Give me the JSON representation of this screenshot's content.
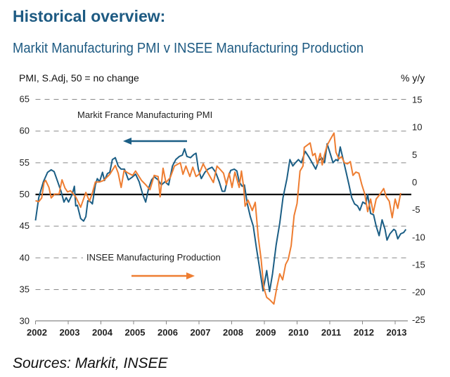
{
  "title": "Historical overview:",
  "subtitle": "Markit Manufacturing PMI v INSEE Manufacturing Production",
  "sources": "Sources: Markit, INSEE",
  "colors": {
    "pmi": "#1b5e85",
    "production": "#ee7d31",
    "title": "#1d5a82"
  },
  "chart_data": {
    "type": "line",
    "title": "Markit Manufacturing PMI v INSEE Manufacturing Production",
    "ylabel_left": "PMI, S.Adj, 50 = no change",
    "ylabel_right": "% y/y",
    "xlim": [
      2002,
      2013.33
    ],
    "ylim_left": [
      30,
      65
    ],
    "ylim_right": [
      -25,
      15
    ],
    "x_ticks": [
      "2002",
      "2003",
      "2004",
      "2005",
      "2006",
      "2007",
      "2008",
      "2009",
      "2010",
      "2011",
      "2012",
      "2013"
    ],
    "y_ticks_left": [
      65,
      60,
      55,
      50,
      45,
      40,
      35,
      30
    ],
    "y_ticks_right": [
      15,
      10,
      5,
      0,
      -5,
      -10,
      -15,
      -20,
      -25
    ],
    "grid": "dashed horizontal",
    "reference_line": 50,
    "annotations": {
      "pmi_label": "Markit France Manufacturing PMI",
      "pmi_arrow": "left axis",
      "production_label": "INSEE Manufacturing Production",
      "production_arrow": "right axis"
    },
    "series": [
      {
        "name": "Markit France Manufacturing PMI",
        "axis": "left",
        "points": [
          [
            2002.0,
            45.9
          ],
          [
            2002.1,
            49.5
          ],
          [
            2002.24,
            52
          ],
          [
            2002.37,
            53.5
          ],
          [
            2002.48,
            53.9
          ],
          [
            2002.57,
            53.6
          ],
          [
            2002.68,
            52
          ],
          [
            2002.78,
            50.5
          ],
          [
            2002.87,
            48.8
          ],
          [
            2002.94,
            49.5
          ],
          [
            2003.01,
            48.8
          ],
          [
            2003.12,
            50
          ],
          [
            2003.19,
            51.3
          ],
          [
            2003.23,
            48.2
          ],
          [
            2003.28,
            48.3
          ],
          [
            2003.38,
            46.2
          ],
          [
            2003.47,
            45.8
          ],
          [
            2003.54,
            46.5
          ],
          [
            2003.6,
            49
          ],
          [
            2003.69,
            48.8
          ],
          [
            2003.74,
            48.5
          ],
          [
            2003.83,
            51.5
          ],
          [
            2003.89,
            52.5
          ],
          [
            2003.96,
            52
          ],
          [
            2004.05,
            53.5
          ],
          [
            2004.11,
            52.2
          ],
          [
            2004.2,
            53.3
          ],
          [
            2004.27,
            53.5
          ],
          [
            2004.35,
            55.5
          ],
          [
            2004.44,
            55.8
          ],
          [
            2004.53,
            54.5
          ],
          [
            2004.62,
            54
          ],
          [
            2004.72,
            54
          ],
          [
            2004.84,
            52.3
          ],
          [
            2004.95,
            52.7
          ],
          [
            2005.06,
            53.2
          ],
          [
            2005.17,
            52
          ],
          [
            2005.28,
            50
          ],
          [
            2005.37,
            48.8
          ],
          [
            2005.46,
            51
          ],
          [
            2005.55,
            52.3
          ],
          [
            2005.63,
            52.8
          ],
          [
            2005.75,
            52.3
          ],
          [
            2005.85,
            51.5
          ],
          [
            2005.96,
            52
          ],
          [
            2006.07,
            51.5
          ],
          [
            2006.19,
            54.5
          ],
          [
            2006.29,
            55.5
          ],
          [
            2006.4,
            56
          ],
          [
            2006.49,
            56.2
          ],
          [
            2006.56,
            57.2
          ],
          [
            2006.63,
            56
          ],
          [
            2006.74,
            55.8
          ],
          [
            2006.84,
            56.3
          ],
          [
            2006.91,
            56.5
          ],
          [
            2006.98,
            54
          ],
          [
            2007.07,
            52.5
          ],
          [
            2007.18,
            53.5
          ],
          [
            2007.28,
            54
          ],
          [
            2007.4,
            54.3
          ],
          [
            2007.51,
            53.5
          ],
          [
            2007.62,
            52
          ],
          [
            2007.71,
            50.5
          ],
          [
            2007.79,
            50.5
          ],
          [
            2007.88,
            52.5
          ],
          [
            2007.97,
            53.8
          ],
          [
            2008.08,
            54
          ],
          [
            2008.16,
            53.7
          ],
          [
            2008.23,
            52
          ],
          [
            2008.32,
            51.3
          ],
          [
            2008.39,
            51.5
          ],
          [
            2008.48,
            48.5
          ],
          [
            2008.57,
            46.5
          ],
          [
            2008.66,
            45
          ],
          [
            2008.76,
            41.5
          ],
          [
            2008.85,
            38.5
          ],
          [
            2008.96,
            34.8
          ],
          [
            2009.07,
            38
          ],
          [
            2009.16,
            34.7
          ],
          [
            2009.25,
            37.5
          ],
          [
            2009.36,
            42
          ],
          [
            2009.47,
            45.5
          ],
          [
            2009.57,
            49.5
          ],
          [
            2009.69,
            52.5
          ],
          [
            2009.78,
            55.5
          ],
          [
            2009.87,
            54.5
          ],
          [
            2009.95,
            55
          ],
          [
            2010.04,
            55.5
          ],
          [
            2010.13,
            55
          ],
          [
            2010.25,
            56.8
          ],
          [
            2010.35,
            56
          ],
          [
            2010.46,
            55
          ],
          [
            2010.57,
            54
          ],
          [
            2010.66,
            55.3
          ],
          [
            2010.75,
            55.8
          ],
          [
            2010.84,
            55
          ],
          [
            2010.92,
            58
          ],
          [
            2011.01,
            56.5
          ],
          [
            2011.1,
            55
          ],
          [
            2011.19,
            55.5
          ],
          [
            2011.25,
            55.3
          ],
          [
            2011.32,
            57.5
          ],
          [
            2011.41,
            55.5
          ],
          [
            2011.5,
            53.5
          ],
          [
            2011.59,
            51.5
          ],
          [
            2011.67,
            49.5
          ],
          [
            2011.76,
            48.5
          ],
          [
            2011.85,
            48.2
          ],
          [
            2011.92,
            47.5
          ],
          [
            2012.01,
            48.8
          ],
          [
            2012.1,
            48.5
          ],
          [
            2012.16,
            50
          ],
          [
            2012.25,
            47
          ],
          [
            2012.34,
            46.8
          ],
          [
            2012.42,
            45
          ],
          [
            2012.51,
            43.5
          ],
          [
            2012.6,
            46
          ],
          [
            2012.69,
            44.5
          ],
          [
            2012.75,
            42.8
          ],
          [
            2012.84,
            43.8
          ],
          [
            2012.96,
            44.5
          ],
          [
            2013.01,
            44.3
          ],
          [
            2013.08,
            43
          ],
          [
            2013.17,
            43.8
          ],
          [
            2013.26,
            44
          ],
          [
            2013.33,
            44.5
          ]
        ]
      },
      {
        "name": "INSEE Manufacturing Production",
        "axis": "right",
        "points": [
          [
            2002.0,
            -3.3
          ],
          [
            2002.1,
            -3.5
          ],
          [
            2002.19,
            -2.8
          ],
          [
            2002.26,
            0
          ],
          [
            2002.31,
            0.4
          ],
          [
            2002.41,
            -0.9
          ],
          [
            2002.48,
            -2.8
          ],
          [
            2002.59,
            -2.1
          ],
          [
            2002.72,
            -2.1
          ],
          [
            2002.81,
            0.5
          ],
          [
            2002.9,
            -1
          ],
          [
            2002.98,
            -1.7
          ],
          [
            2003.07,
            -1.5
          ],
          [
            2003.23,
            -2.6
          ],
          [
            2003.38,
            -4.5
          ],
          [
            2003.54,
            -1.8
          ],
          [
            2003.65,
            -3.4
          ],
          [
            2003.74,
            -1.9
          ],
          [
            2003.83,
            0.1
          ],
          [
            2003.96,
            0.1
          ],
          [
            2004.09,
            0.4
          ],
          [
            2004.27,
            1.5
          ],
          [
            2004.44,
            3.1
          ],
          [
            2004.53,
            1.7
          ],
          [
            2004.62,
            -0.9
          ],
          [
            2004.71,
            2.2
          ],
          [
            2004.84,
            1.7
          ],
          [
            2004.97,
            1.3
          ],
          [
            2005.06,
            2.1
          ],
          [
            2005.24,
            0.4
          ],
          [
            2005.37,
            -0.4
          ],
          [
            2005.5,
            -1.3
          ],
          [
            2005.63,
            1.3
          ],
          [
            2005.75,
            1.1
          ],
          [
            2005.81,
            -2.6
          ],
          [
            2005.9,
            2.6
          ],
          [
            2005.99,
            0
          ],
          [
            2006.12,
            0.9
          ],
          [
            2006.25,
            3
          ],
          [
            2006.43,
            3.6
          ],
          [
            2006.51,
            1.5
          ],
          [
            2006.6,
            3
          ],
          [
            2006.72,
            1.1
          ],
          [
            2006.81,
            2.8
          ],
          [
            2006.91,
            1.1
          ],
          [
            2007.0,
            1.5
          ],
          [
            2007.13,
            3.4
          ],
          [
            2007.26,
            1.9
          ],
          [
            2007.44,
            0
          ],
          [
            2007.55,
            3
          ],
          [
            2007.66,
            2.3
          ],
          [
            2007.75,
            1.7
          ],
          [
            2007.84,
            -0.4
          ],
          [
            2007.92,
            1.7
          ],
          [
            2008.01,
            -0.9
          ],
          [
            2008.1,
            1.9
          ],
          [
            2008.23,
            -0.9
          ],
          [
            2008.3,
            2.1
          ],
          [
            2008.37,
            -1
          ],
          [
            2008.41,
            -4.3
          ],
          [
            2008.5,
            -3.2
          ],
          [
            2008.63,
            -5.1
          ],
          [
            2008.72,
            -3.6
          ],
          [
            2008.81,
            -9.8
          ],
          [
            2008.9,
            -14
          ],
          [
            2008.98,
            -19.1
          ],
          [
            2009.07,
            -20.9
          ],
          [
            2009.16,
            -21.3
          ],
          [
            2009.29,
            -22.1
          ],
          [
            2009.38,
            -19.1
          ],
          [
            2009.47,
            -16.6
          ],
          [
            2009.56,
            -17.7
          ],
          [
            2009.65,
            -14.9
          ],
          [
            2009.73,
            -14
          ],
          [
            2009.82,
            -11.5
          ],
          [
            2009.91,
            -6
          ],
          [
            2010.0,
            -3.8
          ],
          [
            2010.09,
            2.1
          ],
          [
            2010.18,
            3
          ],
          [
            2010.22,
            6.4
          ],
          [
            2010.31,
            6.8
          ],
          [
            2010.4,
            7.2
          ],
          [
            2010.48,
            4.9
          ],
          [
            2010.55,
            5.3
          ],
          [
            2010.62,
            3.4
          ],
          [
            2010.71,
            5.3
          ],
          [
            2010.77,
            3.2
          ],
          [
            2010.84,
            5.1
          ],
          [
            2010.92,
            6.8
          ],
          [
            2011.04,
            8.1
          ],
          [
            2011.13,
            9
          ],
          [
            2011.19,
            5.5
          ],
          [
            2011.28,
            4.3
          ],
          [
            2011.36,
            4.7
          ],
          [
            2011.45,
            3.6
          ],
          [
            2011.54,
            3.4
          ],
          [
            2011.63,
            3.8
          ],
          [
            2011.71,
            1.3
          ],
          [
            2011.8,
            1.9
          ],
          [
            2011.89,
            1.7
          ],
          [
            2011.98,
            -0.4
          ],
          [
            2012.07,
            -2.1
          ],
          [
            2012.16,
            -5.3
          ],
          [
            2012.25,
            -3
          ],
          [
            2012.33,
            -5.5
          ],
          [
            2012.42,
            -3
          ],
          [
            2012.54,
            -2.1
          ],
          [
            2012.65,
            -1.1
          ],
          [
            2012.73,
            -2.6
          ],
          [
            2012.82,
            -3.4
          ],
          [
            2012.91,
            -6.4
          ],
          [
            2013.0,
            -3
          ],
          [
            2013.08,
            -4.7
          ],
          [
            2013.17,
            -1.9
          ]
        ]
      }
    ]
  }
}
